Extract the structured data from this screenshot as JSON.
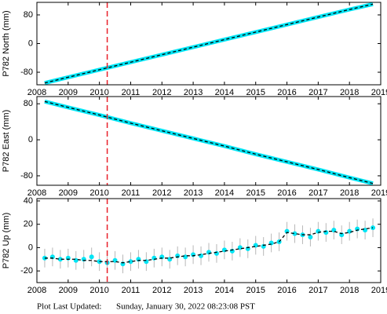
{
  "chart_data": [
    {
      "type": "line",
      "ylabel": "P782 North (mm)",
      "xlim": [
        2008,
        2019
      ],
      "xticks": [
        2008,
        2009,
        2010,
        2011,
        2012,
        2013,
        2014,
        2015,
        2016,
        2017,
        2018,
        2019
      ],
      "ylim": [
        -115,
        115
      ],
      "yticks": [
        -80,
        0,
        80
      ],
      "vline": 2010.25,
      "vline_color": "#e8202a",
      "x": [
        2008.25,
        2009,
        2010,
        2011,
        2012,
        2013,
        2014,
        2015,
        2016,
        2017,
        2018,
        2018.75
      ],
      "series": [
        {
          "color": "#00e5f5",
          "values": [
            -110,
            -94,
            -73,
            -52,
            -31,
            -10,
            11,
            32,
            53,
            74,
            95,
            110
          ]
        },
        {
          "color": "#000000",
          "style": "dashed",
          "values": [
            -110,
            -94,
            -73,
            -52,
            -31,
            -10,
            11,
            32,
            53,
            74,
            95,
            110
          ]
        }
      ]
    },
    {
      "type": "line",
      "ylabel": "P782 East (mm)",
      "xlim": [
        2008,
        2019
      ],
      "xticks": [
        2008,
        2009,
        2010,
        2011,
        2012,
        2013,
        2014,
        2015,
        2016,
        2017,
        2018,
        2019
      ],
      "ylim": [
        -101,
        96
      ],
      "yticks": [
        -80,
        0,
        80
      ],
      "vline": 2010.25,
      "vline_color": "#e8202a",
      "x": [
        2008.25,
        2009,
        2010,
        2011,
        2012,
        2013,
        2014,
        2015,
        2016,
        2017,
        2018,
        2018.75
      ],
      "series": [
        {
          "color": "#00e5f5",
          "values": [
            85,
            72,
            55,
            37,
            20,
            3,
            -14,
            -32,
            -49,
            -66,
            -84,
            -97
          ]
        },
        {
          "color": "#000000",
          "style": "dashed",
          "values": [
            85,
            72,
            55,
            37,
            20,
            3,
            -14,
            -32,
            -49,
            -66,
            -84,
            -97
          ]
        }
      ]
    },
    {
      "type": "errorscatter",
      "ylabel": "P782 Up (mm)",
      "xlim": [
        2008,
        2019
      ],
      "xticks": [
        2008,
        2009,
        2010,
        2011,
        2012,
        2013,
        2014,
        2015,
        2016,
        2017,
        2018,
        2019
      ],
      "ylim": [
        -30,
        42
      ],
      "yticks": [
        -20,
        0,
        20,
        40
      ],
      "vline": 2010.25,
      "vline_color": "#e8202a",
      "x": [
        2008.25,
        2008.5,
        2008.75,
        2009,
        2009.25,
        2009.5,
        2009.75,
        2010,
        2010.25,
        2010.5,
        2010.75,
        2011,
        2011.25,
        2011.5,
        2011.75,
        2012,
        2012.25,
        2012.5,
        2012.75,
        2013,
        2013.25,
        2013.5,
        2013.75,
        2014,
        2014.25,
        2014.5,
        2014.75,
        2015,
        2015.25,
        2015.5,
        2015.75,
        2016,
        2016.25,
        2016.5,
        2016.75,
        2017,
        2017.25,
        2017.5,
        2017.75,
        2018,
        2018.25,
        2018.5,
        2018.75
      ],
      "series": [
        {
          "color": "#00e5f5",
          "error": 8,
          "error_color": "#b8b8b8",
          "values": [
            -9,
            -8,
            -10,
            -9,
            -11,
            -10,
            -8,
            -12,
            -13,
            -11,
            -14,
            -12,
            -10,
            -12,
            -9,
            -8,
            -10,
            -7,
            -8,
            -6,
            -7,
            -4,
            -5,
            -2,
            -3,
            0,
            -1,
            2,
            1,
            4,
            5,
            14,
            12,
            11,
            9,
            14,
            13,
            15,
            11,
            14,
            16,
            15,
            17
          ]
        },
        {
          "color": "#000000",
          "style": "dashed",
          "values": [
            -9,
            -9,
            -10,
            -10,
            -10,
            -11,
            -11,
            -12,
            -12,
            -12,
            -13,
            -12,
            -11,
            -11,
            -10,
            -9,
            -9,
            -8,
            -7,
            -7,
            -6,
            -5,
            -4,
            -3,
            -2,
            -1,
            0,
            1,
            2,
            3,
            5,
            13,
            12,
            11,
            11,
            13,
            14,
            14,
            12,
            13,
            15,
            16,
            17
          ]
        }
      ]
    }
  ],
  "footer": {
    "label": "Plot Last Updated:",
    "timestamp": "Sunday, January 30, 2022 08:23:08 PST"
  }
}
